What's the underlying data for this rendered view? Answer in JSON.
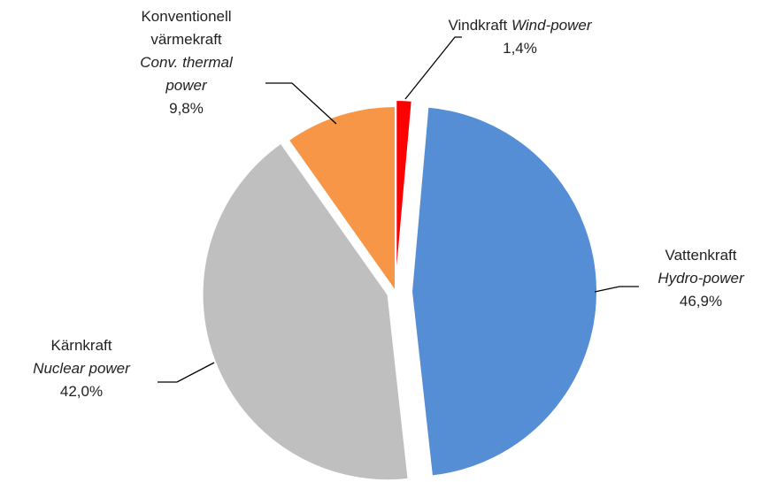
{
  "chart_data": {
    "type": "pie",
    "categories": [
      "Vindkraft",
      "Vattenkraft",
      "Kärnkraft",
      "Konventionell värmekraft"
    ],
    "categories_en": [
      "Wind-power",
      "Hydro-power",
      "Nuclear power",
      "Conv. thermal power"
    ],
    "values": [
      1.4,
      46.9,
      42.0,
      9.8
    ],
    "value_labels": [
      "1,4%",
      "46,9%",
      "42,0%",
      "9,8%"
    ],
    "colors": [
      "#ff0000",
      "#558ed5",
      "#bfbfbf",
      "#f79646"
    ]
  }
}
